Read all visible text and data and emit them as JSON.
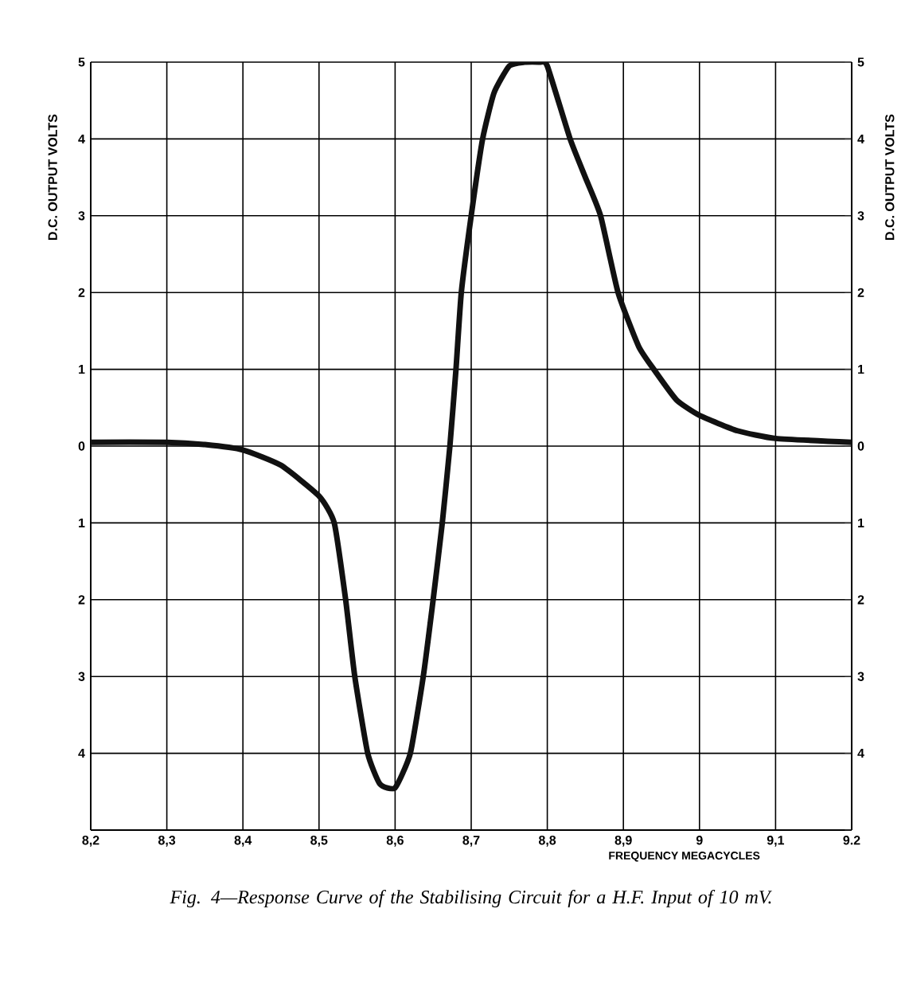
{
  "chart_data": {
    "type": "line",
    "title": "Fig. 4—Response Curve of the Stabilising Circuit for a H.F. Input of 10 mV.",
    "xlabel": "FREQUENCY MEGACYCLES",
    "ylabel": "D.C. OUTPUT VOLTS",
    "y2label": "D.C. OUTPUT VOLTS",
    "x": [
      8.2,
      8.3,
      8.35,
      8.4,
      8.45,
      8.5,
      8.52,
      8.535,
      8.547,
      8.564,
      8.58,
      8.6,
      8.62,
      8.637,
      8.65,
      8.662,
      8.672,
      8.68,
      8.687,
      8.7,
      8.715,
      8.73,
      8.75,
      8.77,
      8.79,
      8.8,
      8.83,
      8.85,
      8.87,
      8.893,
      8.92,
      8.94,
      8.97,
      9.0,
      9.05,
      9.1,
      9.2
    ],
    "series": [
      {
        "color": "#111111",
        "values": [
          0.05,
          0.05,
          0.02,
          -0.05,
          -0.25,
          -0.65,
          -1.0,
          -2.0,
          -3.0,
          -4.0,
          -4.4,
          -4.45,
          -4.0,
          -3.0,
          -2.0,
          -1.0,
          0.0,
          1.0,
          2.0,
          3.0,
          4.0,
          4.6,
          4.95,
          5.0,
          5.0,
          4.95,
          4.0,
          3.5,
          3.0,
          2.0,
          1.3,
          1.0,
          0.6,
          0.4,
          0.2,
          0.1,
          0.05
        ]
      }
    ],
    "xlim": [
      8.2,
      9.2
    ],
    "ylim": [
      -5,
      5
    ],
    "y2lim": [
      -5,
      5
    ],
    "xticks": [
      {
        "value": 8.2,
        "label": "8,2"
      },
      {
        "value": 8.3,
        "label": "8,3"
      },
      {
        "value": 8.4,
        "label": "8,4"
      },
      {
        "value": 8.5,
        "label": "8,5"
      },
      {
        "value": 8.6,
        "label": "8,6"
      },
      {
        "value": 8.7,
        "label": "8,7"
      },
      {
        "value": 8.8,
        "label": "8,8"
      },
      {
        "value": 8.9,
        "label": "8,9"
      },
      9,
      {
        "value": 9.1,
        "label": "9,1"
      },
      {
        "value": 9.2,
        "label": "9.2"
      }
    ],
    "yticks": [
      5,
      4,
      3,
      2,
      1,
      0,
      {
        "value": -1,
        "label": "1"
      },
      {
        "value": -2,
        "label": "2"
      },
      {
        "value": -3,
        "label": "3"
      },
      {
        "value": -4,
        "label": "4"
      },
      {
        "value": -5,
        "label": null
      }
    ],
    "y2ticks": [
      5,
      4,
      3,
      2,
      1,
      0,
      {
        "value": -1,
        "label": "1"
      },
      {
        "value": -2,
        "label": "2"
      },
      {
        "value": -3,
        "label": "3"
      },
      {
        "value": -4,
        "label": "4"
      },
      {
        "value": -5,
        "label": null
      }
    ],
    "grid": true,
    "marker": "none",
    "line_style": "solid"
  }
}
